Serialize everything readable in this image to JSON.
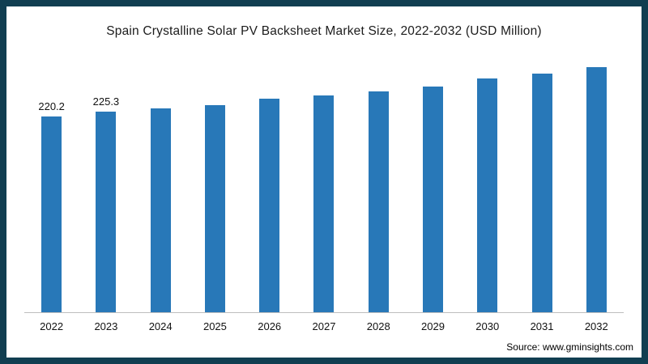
{
  "frame": {
    "border_color": "#113e51",
    "background": "#ffffff"
  },
  "chart_data": {
    "type": "bar",
    "title": "Spain Crystalline Solar PV Backsheet Market Size, 2022-2032 (USD Million)",
    "categories": [
      "2022",
      "2023",
      "2024",
      "2025",
      "2026",
      "2027",
      "2028",
      "2029",
      "2030",
      "2031",
      "2032"
    ],
    "values": [
      220.2,
      225.3,
      228.8,
      233.0,
      239.8,
      243.6,
      248.2,
      253.6,
      262.3,
      267.8,
      275.5
    ],
    "data_labels": [
      "220.2",
      "225.3",
      null,
      null,
      null,
      null,
      null,
      null,
      null,
      null,
      null
    ],
    "bar_color": "#2878b8",
    "xlabel": "",
    "ylabel": "",
    "ylim": [
      0,
      300
    ],
    "grid": false,
    "legend": false
  },
  "source": {
    "label": "Source: www.gminsights.com"
  }
}
